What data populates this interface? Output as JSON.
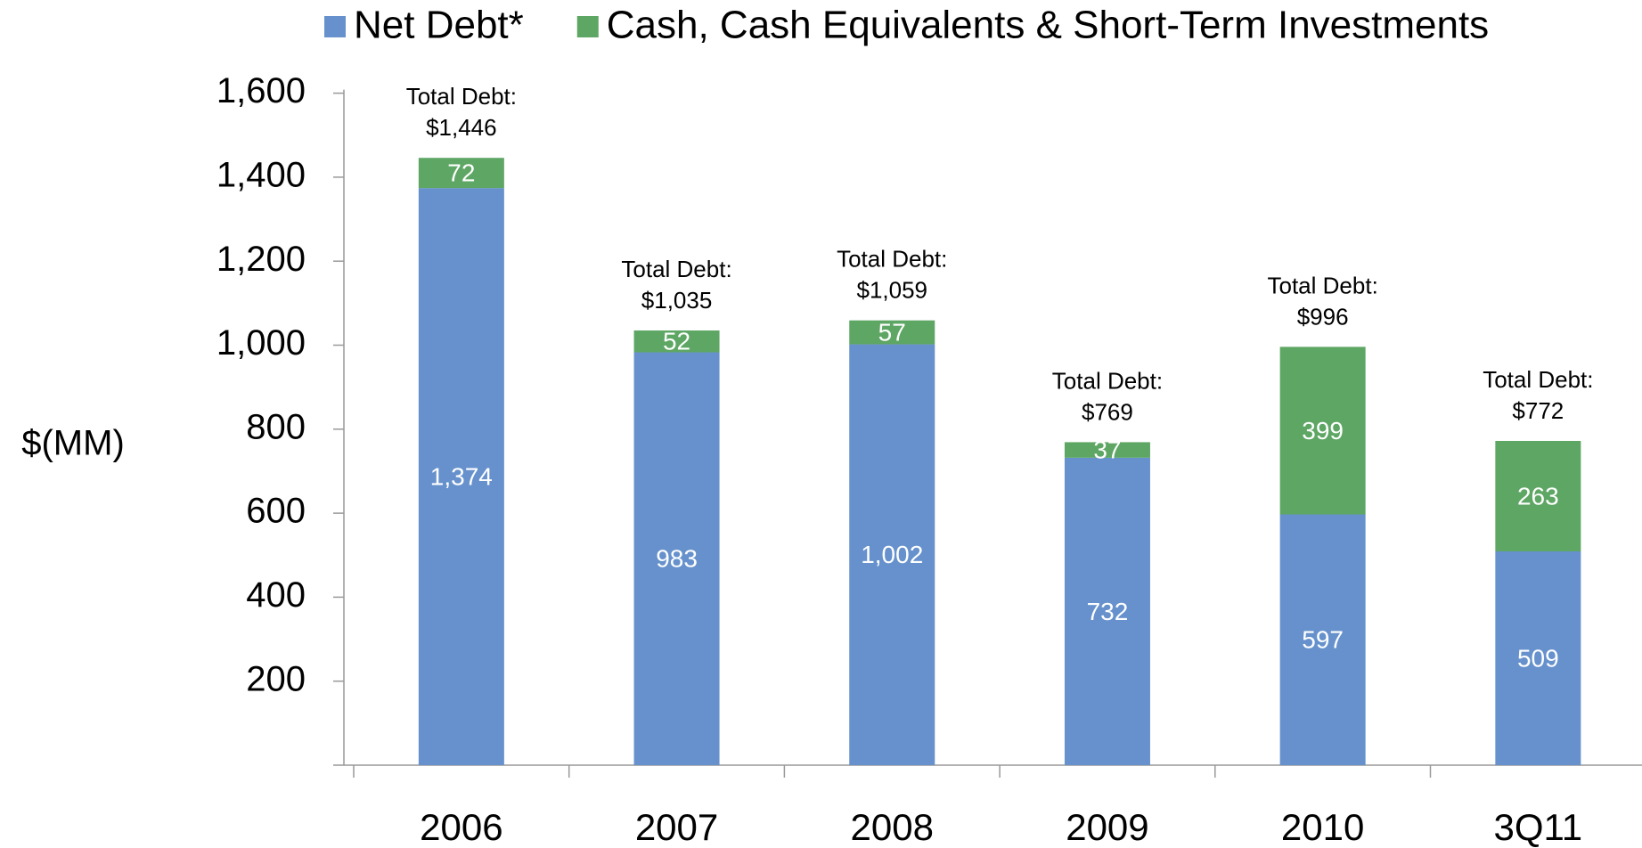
{
  "chart_data": {
    "type": "stacked_bar",
    "ylabel": "$(MM)",
    "categories": [
      "2006",
      "2007",
      "2008",
      "2009",
      "2010",
      "3Q11"
    ],
    "series": [
      {
        "name": "Net Debt*",
        "color": "#6691cc",
        "values": [
          1374,
          983,
          1002,
          732,
          597,
          509
        ],
        "value_labels": [
          "1,374",
          "983",
          "1,002",
          "732",
          "597",
          "509"
        ]
      },
      {
        "name": "Cash, Cash Equivalents & Short-Term Investments",
        "color": "#5ea664",
        "values": [
          72,
          52,
          57,
          37,
          399,
          263
        ]
      }
    ],
    "totals": {
      "label": "Total Debt:",
      "values": [
        1446,
        1035,
        1059,
        769,
        996,
        772
      ],
      "value_labels": [
        "$1,446",
        "$1,035",
        "$1,059",
        "$769",
        "$996",
        "$772"
      ]
    },
    "ylim": [
      0,
      1600
    ],
    "yticks": [
      200,
      400,
      600,
      800,
      {
        "value": 1000,
        "label": "1,000"
      },
      {
        "value": 1200,
        "label": "1,200"
      },
      {
        "value": 1400,
        "label": "1,400"
      },
      {
        "value": 1600,
        "label": "1,600"
      }
    ],
    "legend": "top",
    "grid": false
  }
}
